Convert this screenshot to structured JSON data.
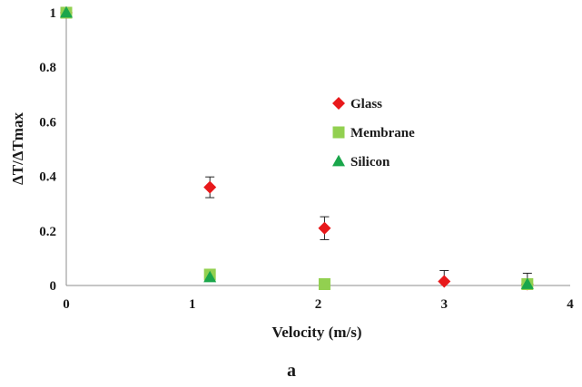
{
  "chart_data": {
    "type": "scatter",
    "xlabel": "Velocity (m/s)",
    "ylabel": "ΔT/ΔTmax",
    "panel_label": "a",
    "xlim": [
      0,
      4
    ],
    "ylim": [
      0,
      1
    ],
    "x_ticks": [
      "0",
      "1",
      "2",
      "3",
      "4"
    ],
    "y_ticks": [
      "0",
      "0.2",
      "0.4",
      "0.6",
      "0.8",
      "1"
    ],
    "grid": false,
    "legend_position": "center",
    "series": [
      {
        "name": "Glass",
        "marker": "diamond",
        "color": "#e8191b",
        "points": [
          {
            "x": 0,
            "y": 1
          },
          {
            "x": 1.14,
            "y": 0.36,
            "err": 0.038
          },
          {
            "x": 2.05,
            "y": 0.21,
            "err": 0.042
          },
          {
            "x": 3.0,
            "y": 0.015,
            "err": 0.04
          },
          {
            "x": 3.66,
            "y": 0.005,
            "err": 0.04
          }
        ]
      },
      {
        "name": "Membrane",
        "marker": "square",
        "color": "#92d050",
        "points": [
          {
            "x": 0,
            "y": 1
          },
          {
            "x": 1.14,
            "y": 0.04
          },
          {
            "x": 2.05,
            "y": 0.005
          },
          {
            "x": 3.66,
            "y": 0.005
          }
        ]
      },
      {
        "name": "Silicon",
        "marker": "triangle",
        "color": "#1aa64b",
        "points": [
          {
            "x": 0,
            "y": 1
          },
          {
            "x": 1.14,
            "y": 0.03
          },
          {
            "x": 3.66,
            "y": 0.005
          }
        ]
      }
    ]
  }
}
